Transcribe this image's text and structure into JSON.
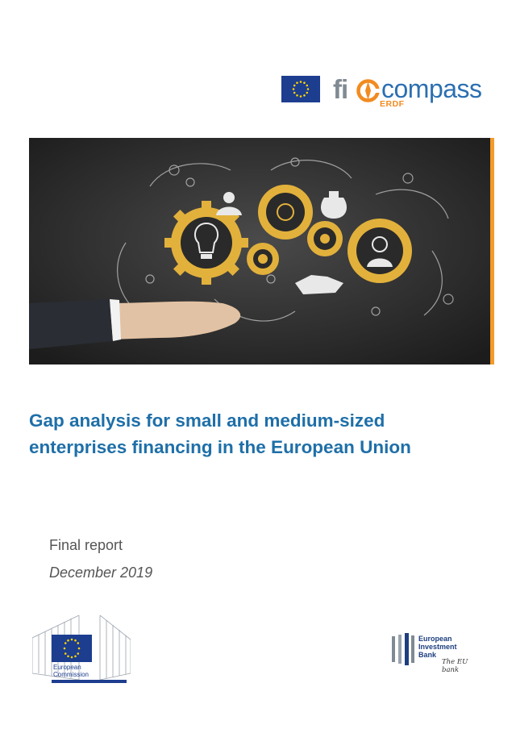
{
  "header": {
    "logo_fi": "fi",
    "logo_compass": "compass",
    "logo_erdf": "ERDF"
  },
  "title": {
    "line1": "Gap analysis for small and medium-sized",
    "line2": "enterprises financing in the European Union"
  },
  "subtitle": "Final report",
  "date": "December 2019",
  "footer": {
    "ec_line1": "European",
    "ec_line2": "Commission",
    "eib_line1": "European",
    "eib_line2": "Investment",
    "eib_line3": "Bank",
    "eib_tagline": "The EU bank"
  },
  "colors": {
    "title": "#1e6fa8",
    "accent_orange": "#f39a2b",
    "eu_blue": "#1d3d8f",
    "eu_yellow": "#ffd400"
  }
}
